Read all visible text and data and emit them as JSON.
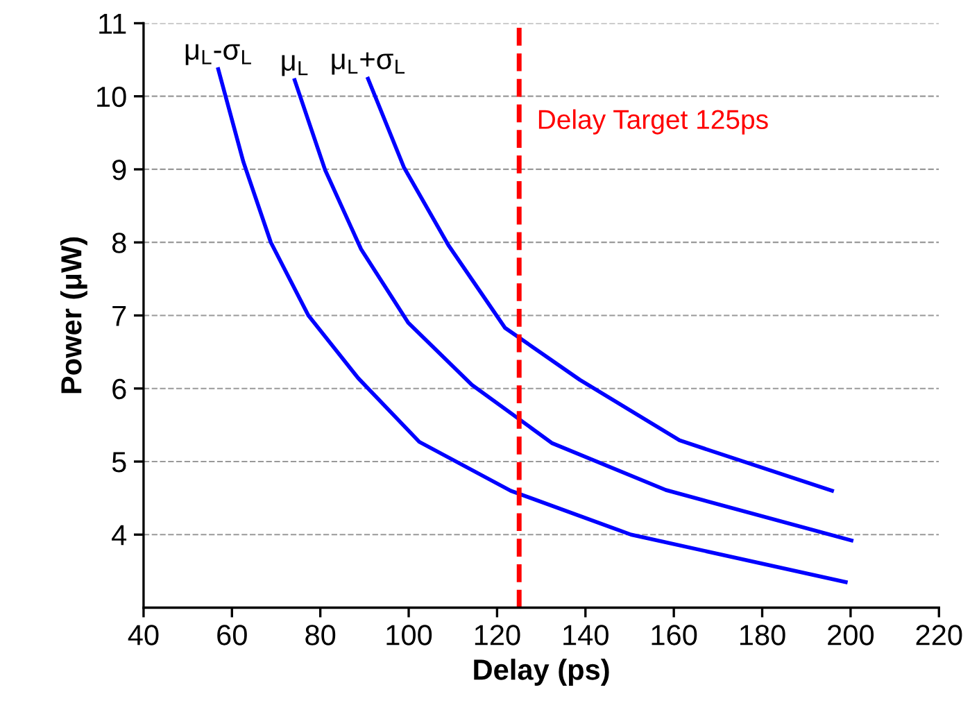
{
  "chart_data": {
    "type": "line",
    "xlabel": "Delay (ps)",
    "ylabel": "Power (μW)",
    "xlim": [
      40,
      220
    ],
    "xticks": [
      40,
      60,
      80,
      100,
      120,
      140,
      160,
      180,
      200,
      220
    ],
    "ylim": [
      3,
      11
    ],
    "yticks": [
      4,
      5,
      6,
      7,
      8,
      9,
      10,
      11
    ],
    "grid": "y",
    "marker": "none",
    "line_style": "solid",
    "series": [
      {
        "name": "μ$_{L}$-σ$_{L}$",
        "color": "#0000ff",
        "x": [
          56.9,
          62.6,
          68.8,
          77.3,
          88.6,
          102.4,
          123.1,
          150.3,
          198.9
        ],
        "values": [
          10.37,
          9.1,
          8.0,
          7.0,
          6.14,
          5.27,
          4.6,
          4.0,
          3.35
        ]
      },
      {
        "name": "μ$_{L}$",
        "color": "#0000ff",
        "x": [
          74.2,
          81.1,
          89.2,
          99.9,
          114.3,
          132.5,
          158.2,
          200.2
        ],
        "values": [
          10.22,
          8.99,
          7.91,
          6.9,
          6.05,
          5.25,
          4.61,
          3.92
        ]
      },
      {
        "name": "μ$_{L}$+σ$_{L}$",
        "color": "#0000ff",
        "x": [
          90.8,
          98.9,
          109.0,
          121.8,
          138.7,
          161.3,
          195.8
        ],
        "values": [
          10.24,
          9.03,
          7.96,
          6.83,
          6.12,
          5.29,
          4.6
        ]
      }
    ],
    "ref_lines": [
      {
        "axis": "x",
        "value": 125,
        "label": "Delay Target 125ps",
        "color": "#ff0000",
        "line_style": "dashed"
      }
    ]
  }
}
